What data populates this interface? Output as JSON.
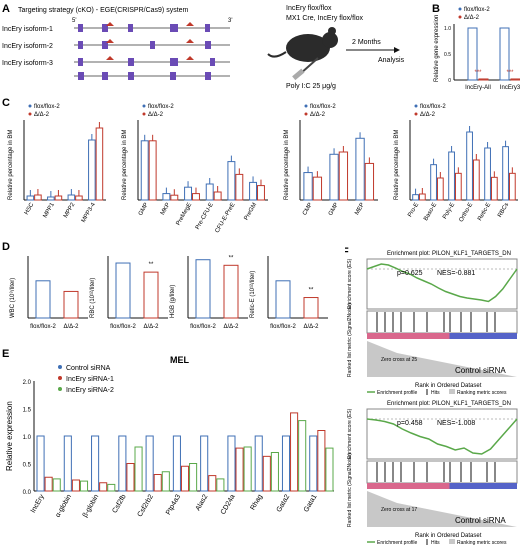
{
  "panels": {
    "A": {
      "letter": "A",
      "strategy": "Targeting strategy (cKO) - EGE(CRISPR/Cas9) system",
      "isoforms": [
        "IncEry isoform-1",
        "IncEry isoform-2",
        "IncEry isoform-3"
      ],
      "five_prime": "5'",
      "three_prime": "3'",
      "mouse_line1": "IncEry flox/flox",
      "mouse_line2": "MX1 Cre, IncEry flox/flox",
      "injection": "Poly I:C 25 μg/g",
      "duration": "2 Months",
      "outcome": "Analysis"
    },
    "B": {
      "letter": "B",
      "legend": [
        "flox/flox-2",
        "Δ/Δ-2"
      ],
      "ylabel": "Relative gene expression",
      "categories": [
        "IncEry-All",
        "IncEry3"
      ],
      "sig": [
        "***",
        "***"
      ],
      "yticks": [
        "0",
        "0.5",
        "1.0"
      ]
    },
    "C": {
      "letter": "C",
      "legend": [
        "flox/flox-2",
        "Δ/Δ-2"
      ],
      "ylabel": "Relative percentage in BM",
      "g1_x": [
        "HSC",
        "MPP1",
        "MPP2",
        "MPP3-4"
      ],
      "g2_x": [
        "GMP",
        "MKP",
        "PreMegE",
        "Pre-CFU-E",
        "CFU-E-PreE",
        "PreGM"
      ],
      "g3_x": [
        "CMP",
        "GMP",
        "MEP"
      ],
      "g4_x": [
        "Pro-E",
        "Baso-E",
        "Poly-E",
        "Ortho-E",
        "Retic-E",
        "RBCs"
      ]
    },
    "D": {
      "letter": "D",
      "charts": [
        {
          "ylabel": "WBC (10⁹/liter)",
          "sig": ""
        },
        {
          "ylabel": "RBC (10¹²/liter)",
          "sig": "**"
        },
        {
          "ylabel": "HGB (g/liter)",
          "sig": "**"
        },
        {
          "ylabel": "Retic-E (10¹²/liter)",
          "sig": "**"
        }
      ],
      "xlabels": [
        "flox/flox-2",
        "Δ/Δ-2"
      ]
    },
    "E": {
      "letter": "E",
      "title": "MEL",
      "legend": [
        "Control siRNA",
        "IncEry siRNA-1",
        "IncEry siRNA-2"
      ],
      "ylabel": "Relative expression",
      "yticks": [
        "0.0",
        "0.5",
        "1.0",
        "1.5",
        "2.0"
      ],
      "genes": [
        "IncEry",
        "α-globin",
        "β-globin",
        "Csf2fb",
        "Csf2rb2",
        "Ptp4a3",
        "Alas2",
        "CD24a",
        "Rhag",
        "Gata2",
        "Gata1"
      ]
    },
    "F": {
      "letter": "F",
      "plots": [
        {
          "title": "Enrichment plot: PILON_KLF1_TARGETS_DN",
          "p": "p=0.625",
          "nes": "NES=-0.881",
          "top_label": "IncEry siRNA-1",
          "bottom_label": "Control siRNA",
          "zero_cross": "Zero cross at 25"
        },
        {
          "title": "Enrichment plot: PILON_KLF1_TARGETS_DN",
          "p": "p=0.458",
          "nes": "NES=-1.008",
          "top_label": "IncEry siRNA-2",
          "bottom_label": "Control siRNA",
          "zero_cross": "Zero cross at 17"
        }
      ],
      "es_label": "Enrichment score (ES)",
      "rank_label": "Ranked list metric (Signal2Noise)",
      "xlabel": "Rank in Ordered Dataset",
      "legend": [
        "Enrichment profile",
        "Hits",
        "Ranking metric scores"
      ]
    }
  },
  "colors": {
    "blue": "#3f6fb5",
    "red": "#c0392b",
    "green": "#5aa84a",
    "dark": "#222222"
  },
  "chart_data": [
    {
      "type": "bar",
      "panel": "B",
      "categories": [
        "IncEry-All",
        "IncEry3"
      ],
      "series": [
        {
          "name": "flox/flox-2",
          "values": [
            1.0,
            1.0
          ]
        },
        {
          "name": "Δ/Δ-2",
          "values": [
            0.02,
            0.02
          ]
        }
      ],
      "ylim": [
        0,
        1.1
      ]
    },
    {
      "type": "bar",
      "panel": "C1",
      "categories": [
        "HSC",
        "MPP1",
        "MPP2",
        "MPP3-4"
      ],
      "series": [
        {
          "name": "flox/flox-2",
          "values": [
            0.04,
            0.03,
            0.05,
            0.6
          ]
        },
        {
          "name": "Δ/Δ-2",
          "values": [
            0.05,
            0.04,
            0.04,
            0.72
          ]
        }
      ]
    },
    {
      "type": "bar",
      "panel": "C2",
      "categories": [
        "GMP",
        "MKP",
        "PreMegE",
        "Pre-CFU-E",
        "CFU-E-PreE",
        "PreGM"
      ],
      "series": [
        {
          "name": "flox/flox-2",
          "values": [
            0.37,
            0.04,
            0.08,
            0.1,
            0.24,
            0.11
          ]
        },
        {
          "name": "Δ/Δ-2",
          "values": [
            0.37,
            0.03,
            0.04,
            0.05,
            0.16,
            0.09
          ]
        }
      ]
    },
    {
      "type": "bar",
      "panel": "C3",
      "categories": [
        "CMP",
        "GMP",
        "MEP"
      ],
      "series": [
        {
          "name": "flox/flox-2",
          "values": [
            0.12,
            0.2,
            0.27
          ]
        },
        {
          "name": "Δ/Δ-2",
          "values": [
            0.1,
            0.21,
            0.16
          ]
        }
      ]
    },
    {
      "type": "bar",
      "panel": "C4",
      "categories": [
        "Pro-E",
        "Baso-E",
        "Poly-E",
        "Ortho-E",
        "Retic-E",
        "RBCs"
      ],
      "series": [
        {
          "name": "flox/flox-2",
          "values": [
            0.8,
            5.3,
            7.2,
            10.2,
            7.8,
            8.0
          ]
        },
        {
          "name": "Δ/Δ-2",
          "values": [
            0.9,
            3.3,
            4.0,
            6.0,
            3.4,
            4.0
          ]
        }
      ]
    },
    {
      "type": "bar",
      "panel": "D",
      "categories": [
        "WBC",
        "RBC",
        "HGB",
        "Retic-E"
      ],
      "series": [
        {
          "name": "flox/flox-2",
          "values": [
            21,
            13.3,
            188,
            0.6
          ]
        },
        {
          "name": "Δ/Δ-2",
          "values": [
            15,
            11.1,
            170,
            0.33
          ]
        }
      ]
    },
    {
      "type": "bar",
      "panel": "E",
      "categories": [
        "IncEry",
        "α-globin",
        "β-globin",
        "Csf2fb",
        "Csf2rb2",
        "Ptp4a3",
        "Alas2",
        "CD24a",
        "Rhag",
        "Gata2",
        "Gata1"
      ],
      "series": [
        {
          "name": "Control siRNA",
          "values": [
            1,
            1,
            1,
            1,
            1,
            1,
            1,
            1,
            1,
            1,
            1
          ]
        },
        {
          "name": "IncEry siRNA-1",
          "values": [
            0.25,
            0.2,
            0.15,
            0.5,
            0.3,
            0.45,
            0.28,
            0.78,
            0.63,
            1.42,
            1.1
          ]
        },
        {
          "name": "IncEry siRNA-2",
          "values": [
            0.22,
            0.18,
            0.12,
            0.8,
            0.35,
            0.5,
            0.22,
            0.8,
            0.7,
            1.28,
            0.78
          ]
        }
      ],
      "ylim": [
        0,
        2.0
      ]
    },
    {
      "type": "line",
      "panel": "F1",
      "series": [
        {
          "name": "Enrichment profile",
          "values": [
            0,
            0.05,
            0.1,
            0.08,
            0.02,
            -0.05,
            -0.1,
            -0.18,
            -0.24,
            -0.3,
            -0.38,
            -0.45,
            -0.5,
            -0.55,
            -0.58,
            -0.6,
            -0.62,
            -0.65,
            -0.55,
            -0.4,
            -0.2,
            0
          ]
        }
      ]
    },
    {
      "type": "line",
      "panel": "F2",
      "series": [
        {
          "name": "Enrichment profile",
          "values": [
            0,
            -0.02,
            -0.05,
            -0.1,
            -0.2,
            -0.28,
            -0.35,
            -0.4,
            -0.5,
            -0.55,
            -0.62,
            -0.58,
            -0.68,
            -0.7,
            -0.6,
            -0.4,
            -0.2,
            0
          ]
        }
      ]
    }
  ]
}
